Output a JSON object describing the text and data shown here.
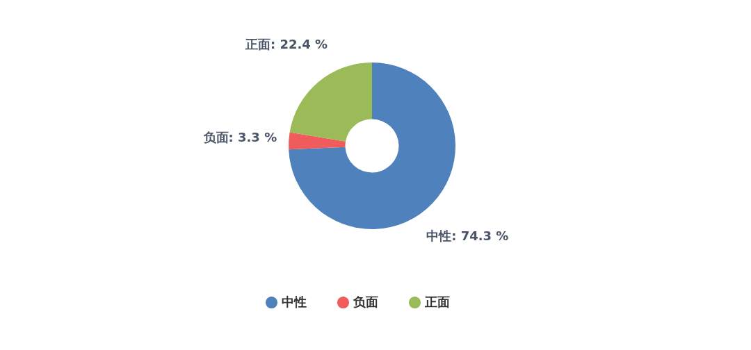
{
  "chart_data": {
    "type": "donut",
    "categories": [
      "中性",
      "负面",
      "正面"
    ],
    "values": [
      74.3,
      3.3,
      22.4
    ],
    "value_labels": [
      ": 74.3 %",
      ": 3.3 %",
      ": 22.4 %"
    ],
    "colors": [
      "#4f81bd",
      "#f05b5b",
      "#9bbb59"
    ],
    "legend": "bottom"
  }
}
